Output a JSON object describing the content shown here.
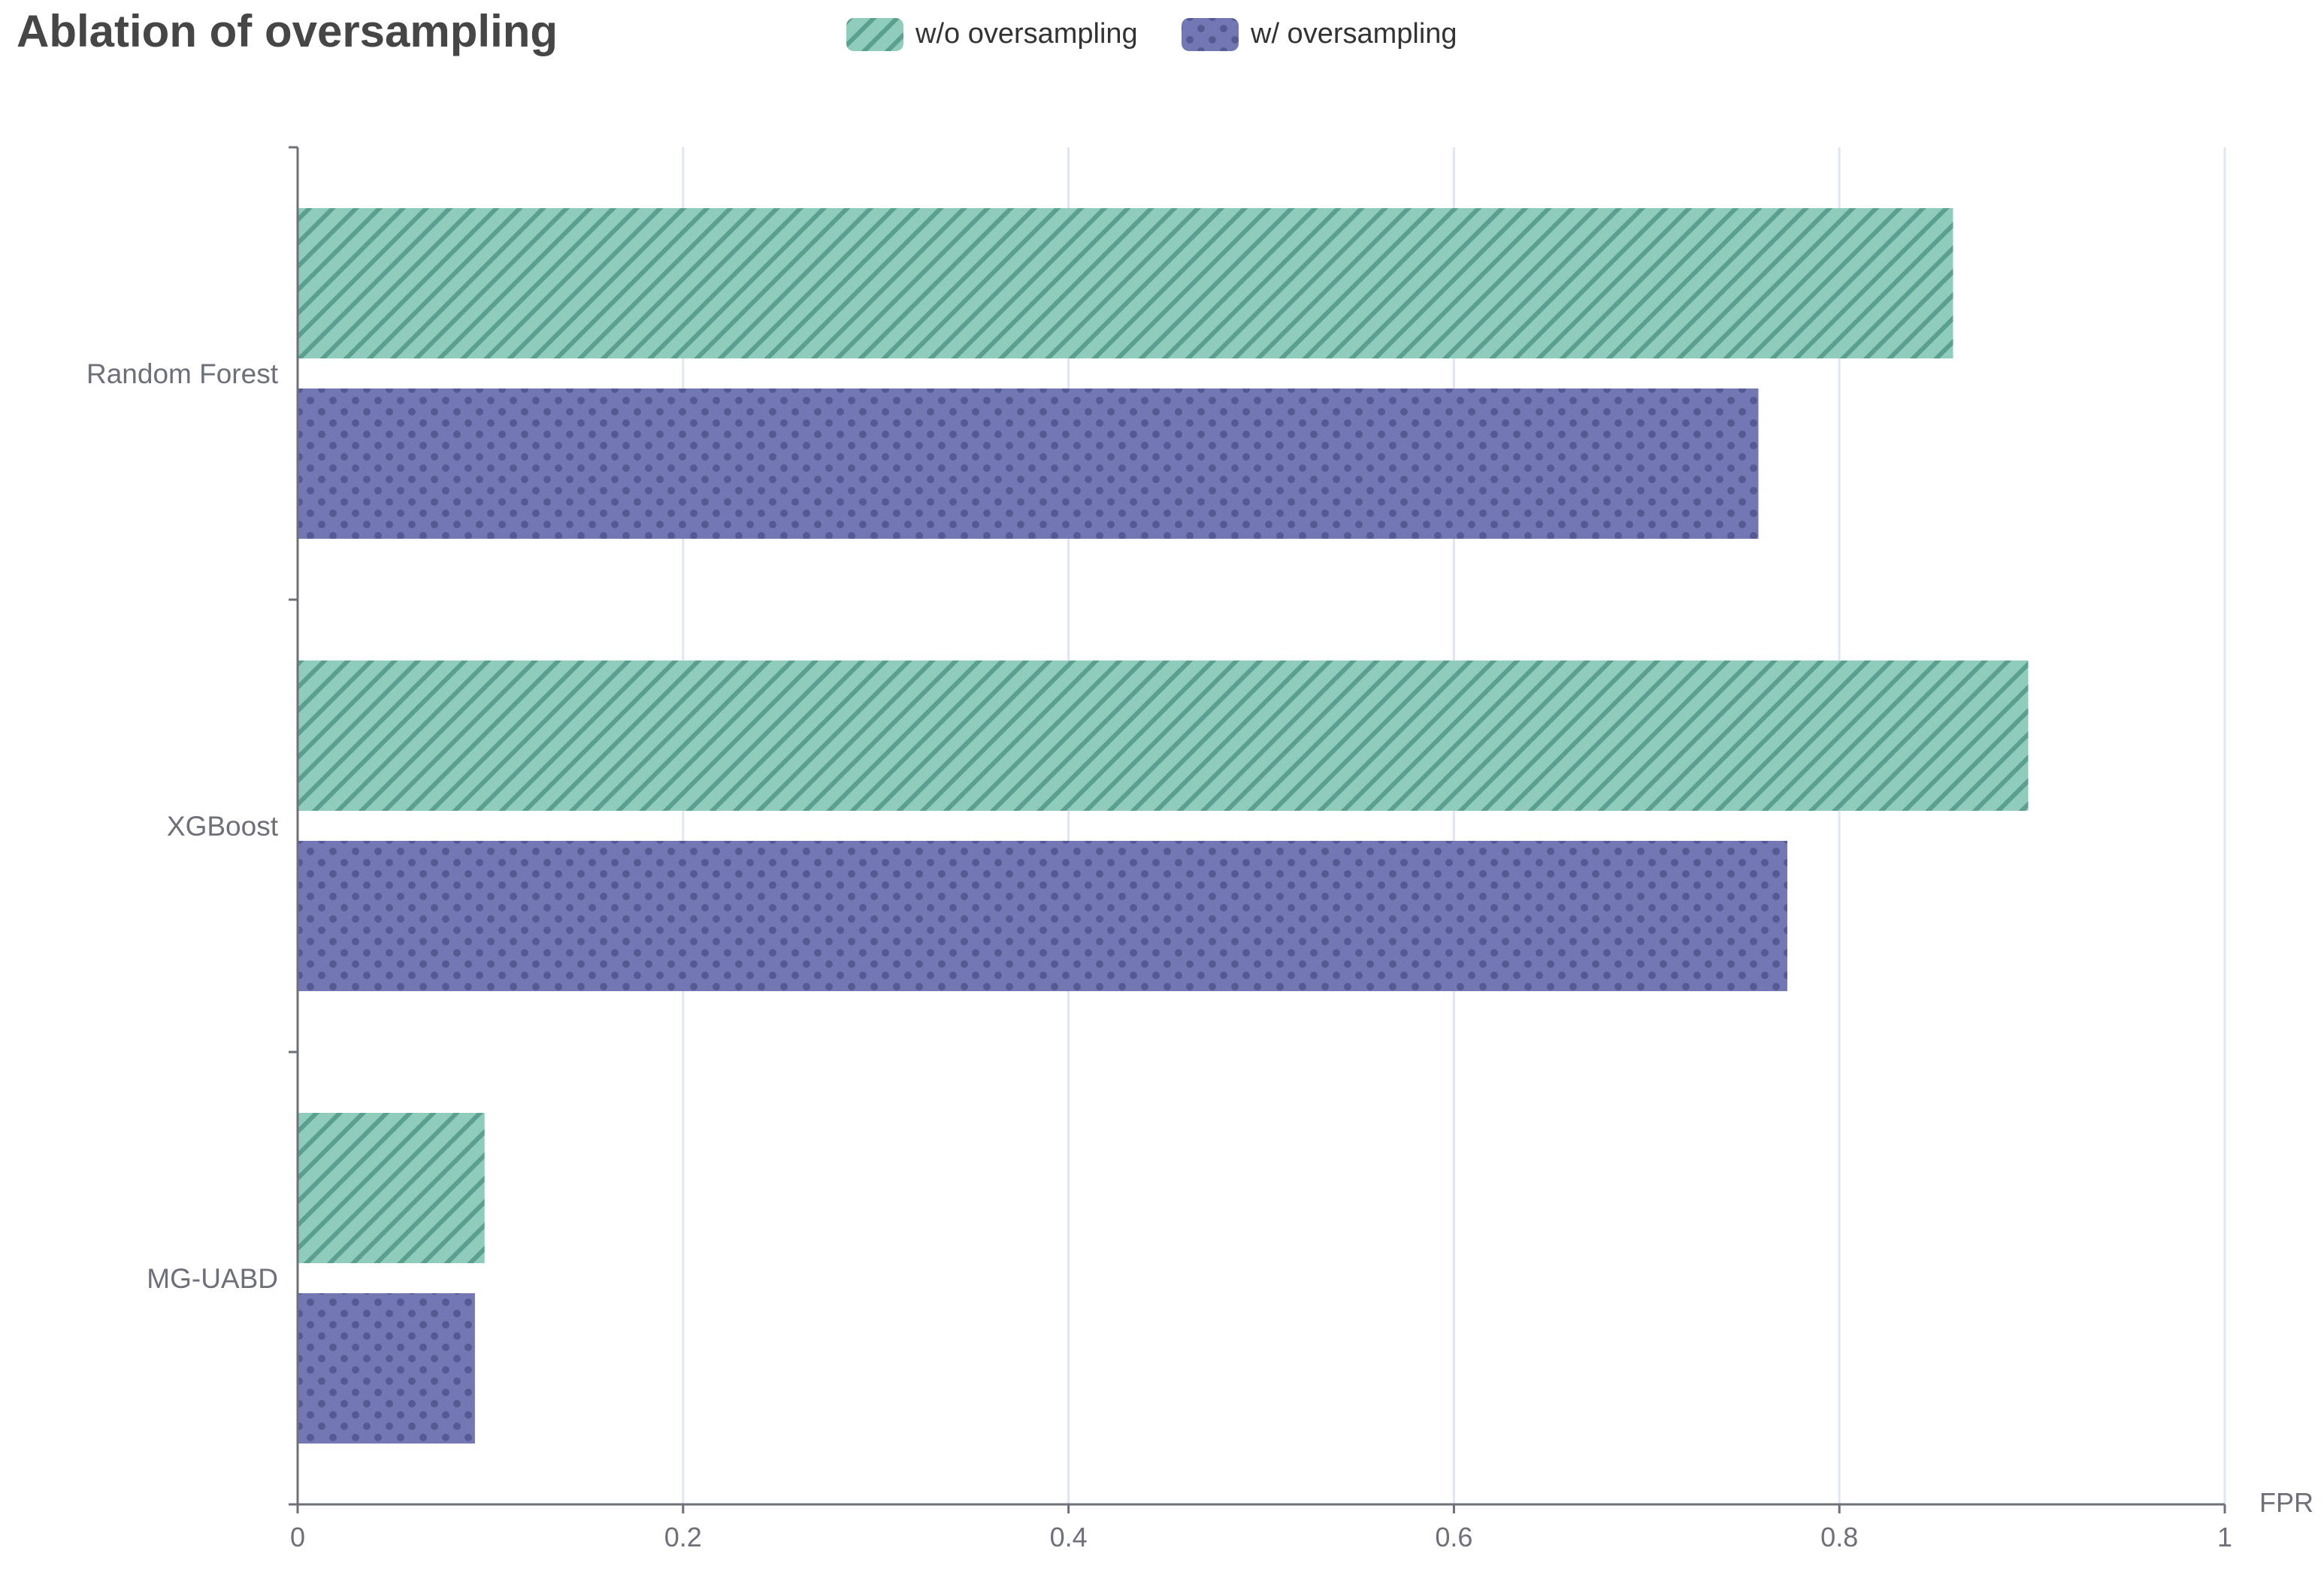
{
  "chart_data": {
    "type": "bar",
    "orientation": "horizontal",
    "title": "Ablation of oversampling",
    "categories": [
      "Random Forest",
      "XGBoost",
      "MG-UABD"
    ],
    "series": [
      {
        "name": "w/o oversampling",
        "values": [
          0.859,
          0.898,
          0.097
        ],
        "color": "#8fccbb",
        "pattern": "diagonal-stripes"
      },
      {
        "name": "w/ oversampling",
        "values": [
          0.758,
          0.773,
          0.092
        ],
        "color": "#7378b4",
        "pattern": "dots"
      }
    ],
    "xlabel": "FPR",
    "ylabel": "",
    "xlim": [
      0,
      1
    ],
    "xticks": [
      "0",
      "0.2",
      "0.4",
      "0.6",
      "0.8",
      "1"
    ],
    "grid": true,
    "legend_position": "top-center"
  }
}
